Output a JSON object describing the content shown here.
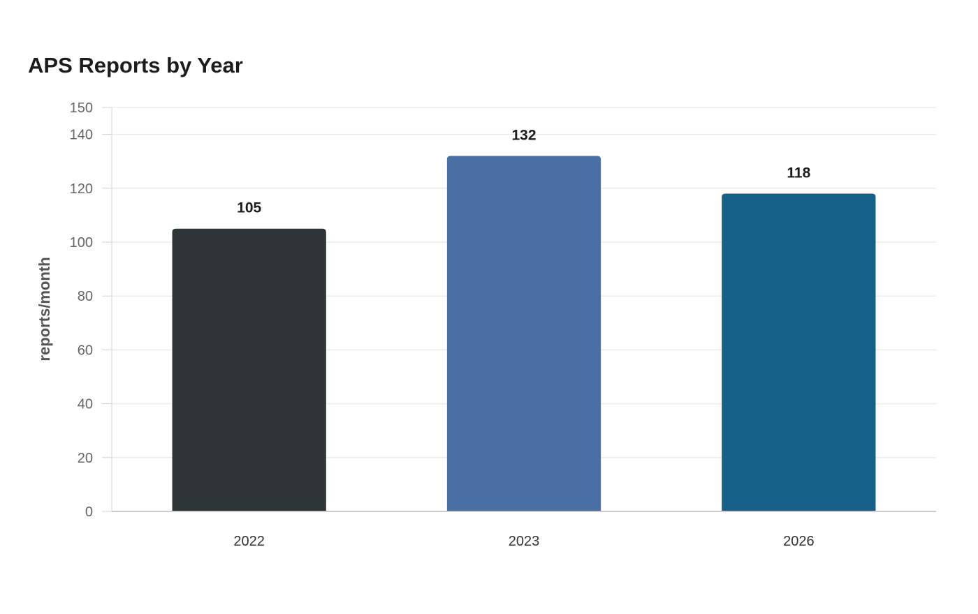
{
  "chart_data": {
    "type": "bar",
    "title": "APS Reports by Year",
    "xlabel": "",
    "ylabel": "reports/month",
    "categories": [
      "2022",
      "2023",
      "2026"
    ],
    "values": [
      105,
      132,
      118
    ],
    "colors": [
      "#2d3436",
      "#4a6fa5",
      "#166088"
    ],
    "ylim": [
      0,
      150
    ],
    "yticks": [
      0,
      20,
      40,
      60,
      80,
      100,
      120,
      140,
      150
    ],
    "grid": true,
    "legend": "none"
  }
}
